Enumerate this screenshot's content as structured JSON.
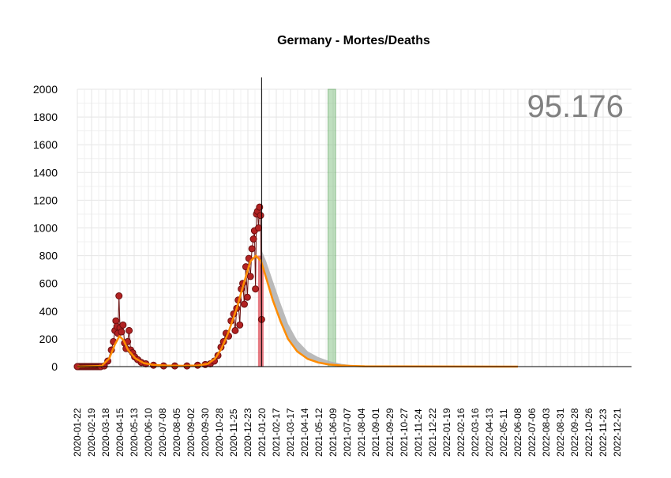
{
  "chart_data": {
    "type": "line",
    "title": "Germany - Mortes/Deaths",
    "total_label": "95.176",
    "ylim": [
      0,
      2000
    ],
    "y_ticks": [
      0,
      200,
      400,
      600,
      800,
      1000,
      1200,
      1400,
      1600,
      1800,
      2000
    ],
    "x_start": "2020-01-22",
    "x_end": "2023-01-18",
    "x_tick_labels": [
      "2020-01-22",
      "2020-02-19",
      "2020-03-18",
      "2020-04-15",
      "2020-05-13",
      "2020-06-10",
      "2020-07-08",
      "2020-08-05",
      "2020-09-02",
      "2020-09-30",
      "2020-10-28",
      "2020-11-25",
      "2020-12-23",
      "2021-01-20",
      "2021-02-17",
      "2021-03-17",
      "2021-04-14",
      "2021-05-12",
      "2021-06-09",
      "2021-07-07",
      "2021-08-04",
      "2021-09-01",
      "2021-09-29",
      "2021-10-27",
      "2021-11-24",
      "2021-12-22",
      "2022-01-19",
      "2022-02-16",
      "2022-03-16",
      "2022-04-13",
      "2022-05-11",
      "2022-06-08",
      "2022-07-06",
      "2022-08-03",
      "2022-08-31",
      "2022-09-28",
      "2022-10-26",
      "2022-11-23",
      "2022-12-21"
    ],
    "today_line": "2021-01-19",
    "red_band": [
      "2021-01-12",
      "2021-01-23"
    ],
    "green_band": [
      "2021-05-30",
      "2021-06-14"
    ],
    "colors": {
      "observed": "#b22222",
      "observed_edge": "#6b0f0f",
      "fit": "#ff8c00",
      "forecast_band": "#b3b3b3",
      "red_band": "#d9333f",
      "green_band": "#7fbf7f",
      "grid": "#e5e5e5",
      "total_label": "#808080"
    },
    "series": [
      {
        "kind": "observed",
        "x": [
          "2020-01-22",
          "2020-03-08",
          "2020-03-15",
          "2020-03-22",
          "2020-03-29",
          "2020-04-02",
          "2020-04-05",
          "2020-04-07",
          "2020-04-09",
          "2020-04-11",
          "2020-04-13",
          "2020-04-15",
          "2020-04-18",
          "2020-04-21",
          "2020-04-24",
          "2020-04-27",
          "2020-04-30",
          "2020-05-03",
          "2020-05-06",
          "2020-05-10",
          "2020-05-14",
          "2020-05-20",
          "2020-05-27",
          "2020-06-05",
          "2020-06-20",
          "2020-07-10",
          "2020-08-01",
          "2020-08-25",
          "2020-09-15",
          "2020-09-30",
          "2020-10-10",
          "2020-10-18",
          "2020-10-25",
          "2020-10-31",
          "2020-11-05",
          "2020-11-10",
          "2020-11-15",
          "2020-11-20",
          "2020-11-25",
          "2020-11-28",
          "2020-12-01",
          "2020-12-04",
          "2020-12-07",
          "2020-12-10",
          "2020-12-13",
          "2020-12-16",
          "2020-12-19",
          "2020-12-22",
          "2020-12-25",
          "2020-12-28",
          "2020-12-31",
          "2021-01-03",
          "2021-01-05",
          "2021-01-07",
          "2021-01-09",
          "2021-01-11",
          "2021-01-13",
          "2021-01-15",
          "2021-01-17",
          "2021-01-19"
        ],
        "y": [
          0,
          0,
          5,
          40,
          120,
          180,
          260,
          330,
          290,
          240,
          510,
          280,
          250,
          300,
          170,
          130,
          180,
          260,
          120,
          100,
          70,
          50,
          30,
          20,
          10,
          5,
          5,
          5,
          10,
          15,
          20,
          40,
          80,
          140,
          180,
          240,
          220,
          330,
          380,
          260,
          420,
          480,
          300,
          560,
          600,
          450,
          720,
          500,
          780,
          650,
          850,
          920,
          980,
          560,
          1100,
          1120,
          1000,
          1150,
          1090,
          340
        ]
      },
      {
        "kind": "fit",
        "x": [
          "2020-01-22",
          "2020-03-10",
          "2020-03-25",
          "2020-04-05",
          "2020-04-14",
          "2020-04-22",
          "2020-05-01",
          "2020-05-15",
          "2020-06-01",
          "2020-06-20",
          "2020-07-15",
          "2020-08-15",
          "2020-09-15",
          "2020-10-05",
          "2020-10-20",
          "2020-11-01",
          "2020-11-15",
          "2020-12-01",
          "2020-12-15",
          "2020-12-28",
          "2021-01-08",
          "2021-01-18",
          "2021-01-28",
          "2021-02-10",
          "2021-02-25",
          "2021-03-12",
          "2021-03-30",
          "2021-04-20",
          "2021-05-10",
          "2021-06-01",
          "2021-06-25",
          "2021-07-20",
          "2021-08-10",
          "2022-06-08"
        ],
        "y": [
          0,
          5,
          60,
          160,
          220,
          190,
          120,
          60,
          25,
          12,
          8,
          6,
          8,
          20,
          60,
          130,
          250,
          420,
          600,
          760,
          800,
          760,
          640,
          480,
          330,
          200,
          110,
          55,
          30,
          15,
          8,
          4,
          2,
          0
        ]
      },
      {
        "kind": "forecast_band",
        "x": [
          "2021-01-19",
          "2021-01-28",
          "2021-02-10",
          "2021-02-25",
          "2021-03-12",
          "2021-03-30",
          "2021-04-20",
          "2021-05-10",
          "2021-06-01",
          "2021-06-25",
          "2021-07-20",
          "2021-08-10"
        ],
        "upper": [
          840,
          760,
          620,
          460,
          310,
          190,
          110,
          70,
          40,
          20,
          8,
          3
        ],
        "lower": [
          760,
          640,
          470,
          320,
          200,
          110,
          55,
          25,
          10,
          4,
          1,
          0
        ]
      }
    ]
  }
}
